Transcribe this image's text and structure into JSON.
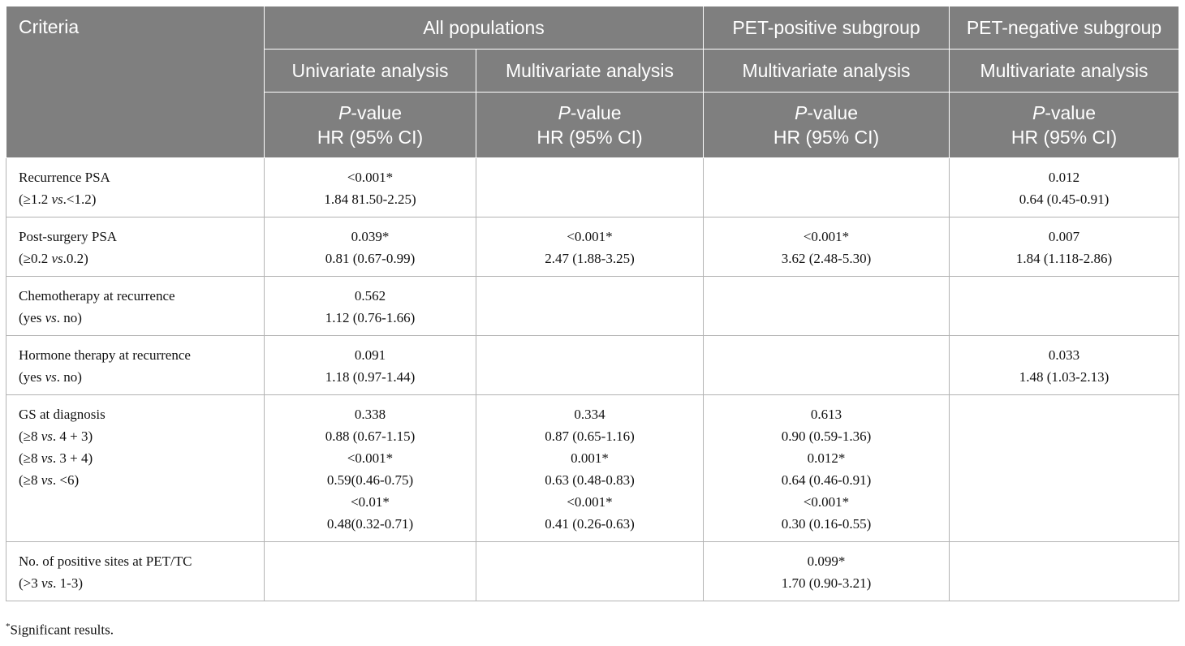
{
  "header": {
    "criteria": "Criteria",
    "groups": [
      "All populations",
      "PET-positive subgroup",
      "PET-negative subgroup"
    ],
    "subheads": [
      "Univariate analysis",
      "Multivariate analysis",
      "Multivariate analysis",
      "Multivariate analysis"
    ],
    "pvalue": "P-value",
    "hr": "HR (95% CI)"
  },
  "rows": [
    {
      "criteria": [
        "Recurrence PSA",
        "(≥1.2 vs.<1.2)"
      ],
      "cells": [
        [
          "<0.001*",
          "1.84 81.50-2.25)"
        ],
        [],
        [],
        [
          "0.012",
          "0.64 (0.45-0.91)"
        ]
      ]
    },
    {
      "criteria": [
        "Post-surgery PSA",
        "(≥0.2 vs.0.2)"
      ],
      "cells": [
        [
          "0.039*",
          "0.81 (0.67-0.99)"
        ],
        [
          "<0.001*",
          "2.47 (1.88-3.25)"
        ],
        [
          "<0.001*",
          "3.62 (2.48-5.30)"
        ],
        [
          "0.007",
          "1.84 (1.118-2.86)"
        ]
      ]
    },
    {
      "criteria": [
        "Chemotherapy at recurrence",
        "(yes vs. no)"
      ],
      "cells": [
        [
          "0.562",
          "1.12 (0.76-1.66)"
        ],
        [],
        [],
        []
      ]
    },
    {
      "criteria": [
        "Hormone therapy at recurrence",
        "(yes vs. no)"
      ],
      "cells": [
        [
          "0.091",
          "1.18 (0.97-1.44)"
        ],
        [],
        [],
        [
          "0.033",
          "1.48 (1.03-2.13)"
        ]
      ]
    },
    {
      "criteria": [
        "GS at diagnosis",
        "(≥8 vs. 4 + 3)",
        "(≥8 vs. 3 + 4)",
        "(≥8 vs. <6)"
      ],
      "cells": [
        [
          "0.338",
          "0.88 (0.67-1.15)",
          "<0.001*",
          "0.59(0.46-0.75)",
          "<0.01*",
          "0.48(0.32-0.71)"
        ],
        [
          "0.334",
          "0.87 (0.65-1.16)",
          "0.001*",
          "0.63 (0.48-0.83)",
          "<0.001*",
          "0.41 (0.26-0.63)"
        ],
        [
          "0.613",
          "0.90 (0.59-1.36)",
          "0.012*",
          "0.64 (0.46-0.91)",
          "<0.001*",
          "0.30 (0.16-0.55)"
        ],
        []
      ]
    },
    {
      "criteria": [
        "No. of positive sites at PET/TC",
        "(>3 vs. 1-3)"
      ],
      "cells": [
        [],
        [],
        [
          "0.099*",
          "1.70 (0.90-3.21)"
        ],
        []
      ]
    }
  ],
  "footnote": {
    "mark": "*",
    "text": "Significant results."
  }
}
